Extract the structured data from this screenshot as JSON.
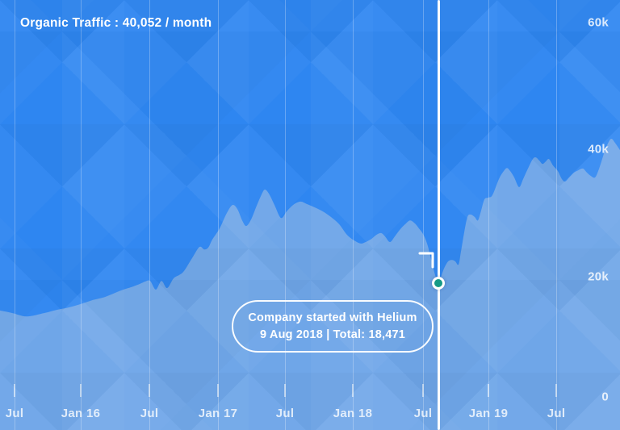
{
  "header": {
    "title": "Organic Traffic : 40,052 / month"
  },
  "annotation": {
    "line1": "Company started with Helium",
    "line2": "9 Aug 2018 | Total: 18,471"
  },
  "colors": {
    "background": "#2e86f1",
    "area_fill": "#6fa6e8",
    "event_line": "#ffffff",
    "marker_fill": "#159a86",
    "text": "#ffffff"
  },
  "chart_data": {
    "type": "area",
    "title": "Organic Traffic : 40,052 / month",
    "current_value_per_month": 40052,
    "x_tick_labels": [
      "Jul",
      "Jan 16",
      "Jul",
      "Jan 17",
      "Jul",
      "Jan 18",
      "Jul",
      "Jan 19",
      "Jul"
    ],
    "y_tick_labels": [
      "60k",
      "40k",
      "20k",
      "0"
    ],
    "ylim": [
      0,
      62000
    ],
    "grid": true,
    "legend": "none",
    "event_marker": {
      "date": "9 Aug 2018",
      "total": 18471,
      "note": "Company started with Helium"
    },
    "series": [
      {
        "name": "Organic Traffic",
        "points": [
          [
            0,
            14000
          ],
          [
            15,
            13600
          ],
          [
            33,
            13050
          ],
          [
            55,
            13600
          ],
          [
            70,
            14100
          ],
          [
            85,
            14500
          ],
          [
            100,
            15050
          ],
          [
            115,
            15700
          ],
          [
            130,
            16200
          ],
          [
            150,
            17250
          ],
          [
            165,
            17900
          ],
          [
            173,
            18300
          ],
          [
            180,
            18700
          ],
          [
            186,
            18800
          ],
          [
            193,
            17400
          ],
          [
            200,
            18800
          ],
          [
            207,
            17650
          ],
          [
            215,
            19200
          ],
          [
            222,
            19750
          ],
          [
            228,
            20400
          ],
          [
            238,
            22500
          ],
          [
            247,
            24300
          ],
          [
            253,
            23900
          ],
          [
            258,
            24200
          ],
          [
            263,
            25500
          ],
          [
            272,
            27300
          ],
          [
            281,
            29800
          ],
          [
            288,
            31100
          ],
          [
            294,
            30450
          ],
          [
            300,
            28600
          ],
          [
            305,
            27700
          ],
          [
            311,
            28750
          ],
          [
            318,
            31000
          ],
          [
            324,
            32800
          ],
          [
            328,
            33600
          ],
          [
            333,
            32950
          ],
          [
            340,
            31100
          ],
          [
            348,
            29000
          ],
          [
            355,
            30050
          ],
          [
            363,
            31100
          ],
          [
            372,
            31650
          ],
          [
            380,
            31250
          ],
          [
            390,
            30700
          ],
          [
            400,
            30050
          ],
          [
            410,
            29150
          ],
          [
            420,
            28000
          ],
          [
            430,
            26250
          ],
          [
            440,
            25250
          ],
          [
            447,
            24850
          ],
          [
            453,
            25100
          ],
          [
            460,
            25600
          ],
          [
            466,
            26250
          ],
          [
            472,
            26550
          ],
          [
            477,
            26000
          ],
          [
            483,
            25100
          ],
          [
            489,
            26000
          ],
          [
            495,
            27050
          ],
          [
            502,
            28000
          ],
          [
            508,
            28600
          ],
          [
            514,
            28100
          ],
          [
            519,
            27300
          ],
          [
            524,
            26400
          ],
          [
            529,
            24850
          ],
          [
            534,
            22350
          ],
          [
            539,
            19750
          ],
          [
            543,
            18471
          ],
          [
            546,
            19350
          ],
          [
            550,
            20800
          ],
          [
            555,
            21950
          ],
          [
            560,
            22200
          ],
          [
            564,
            21950
          ],
          [
            568,
            21450
          ],
          [
            571,
            23550
          ],
          [
            575,
            26650
          ],
          [
            579,
            29150
          ],
          [
            583,
            29550
          ],
          [
            588,
            29150
          ],
          [
            592,
            28600
          ],
          [
            596,
            30200
          ],
          [
            600,
            32000
          ],
          [
            605,
            32300
          ],
          [
            610,
            32700
          ],
          [
            618,
            35300
          ],
          [
            624,
            36600
          ],
          [
            628,
            37100
          ],
          [
            632,
            36600
          ],
          [
            637,
            35550
          ],
          [
            643,
            34000
          ],
          [
            648,
            35300
          ],
          [
            654,
            37000
          ],
          [
            660,
            38550
          ],
          [
            664,
            38800
          ],
          [
            668,
            38300
          ],
          [
            672,
            37750
          ],
          [
            676,
            38150
          ],
          [
            680,
            38550
          ],
          [
            685,
            37500
          ],
          [
            691,
            36600
          ],
          [
            696,
            35300
          ],
          [
            700,
            34900
          ],
          [
            705,
            35550
          ],
          [
            711,
            36350
          ],
          [
            716,
            36700
          ],
          [
            722,
            37000
          ],
          [
            727,
            36350
          ],
          [
            732,
            35800
          ],
          [
            737,
            35550
          ],
          [
            741,
            36600
          ],
          [
            745,
            38150
          ],
          [
            750,
            40150
          ],
          [
            755,
            41550
          ],
          [
            758,
            41800
          ],
          [
            762,
            41150
          ],
          [
            768,
            40000
          ]
        ]
      }
    ]
  }
}
